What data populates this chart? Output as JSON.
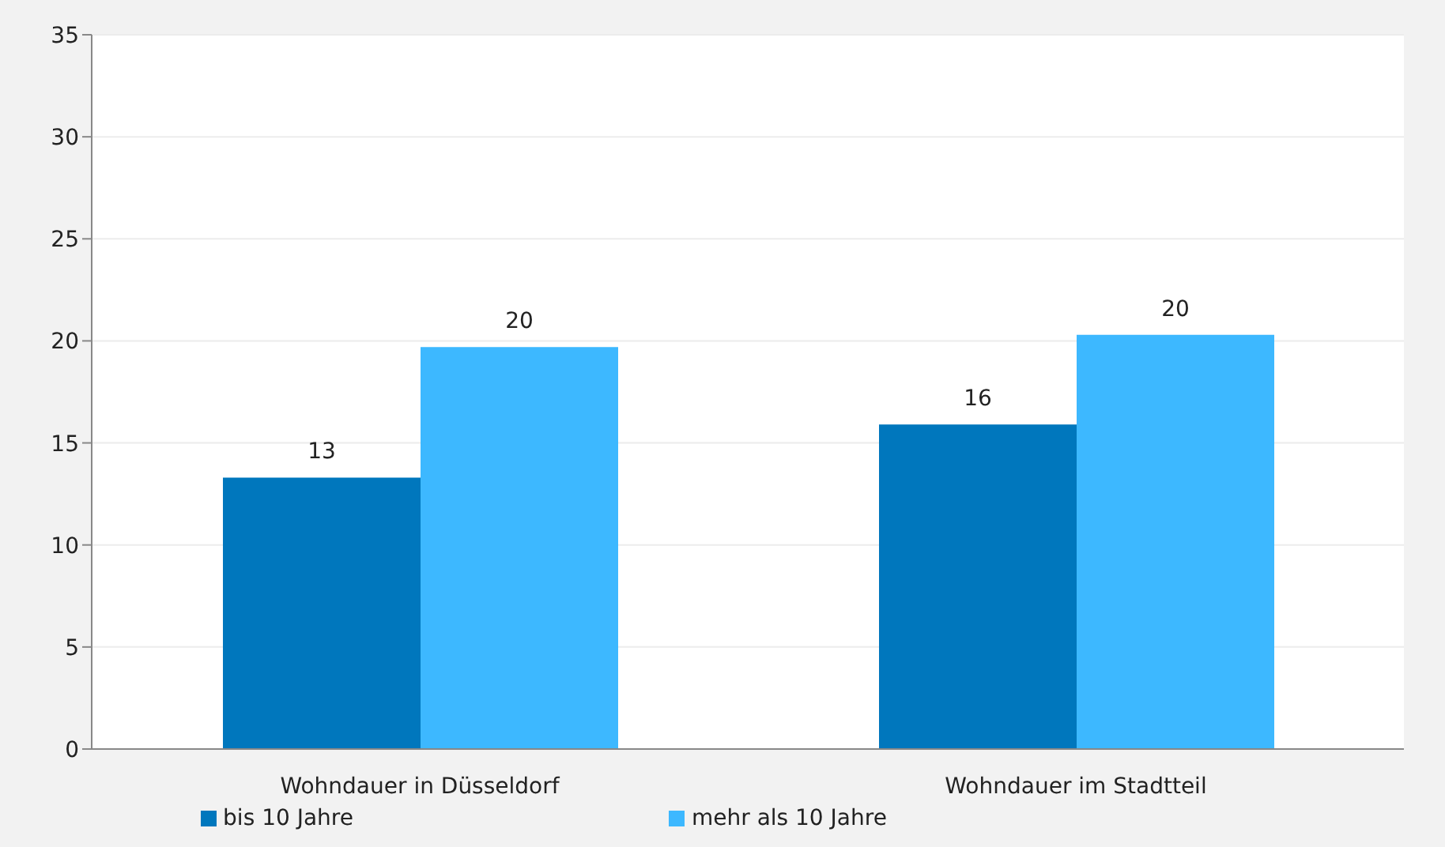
{
  "chart_data": {
    "type": "bar",
    "categories": [
      "Wohndauer in Düsseldorf",
      "Wohndauer im Stadtteil"
    ],
    "series": [
      {
        "name": "bis 10 Jahre",
        "color": "#0077bd",
        "values": [
          13.3,
          15.9
        ],
        "value_labels": [
          "13",
          "16"
        ]
      },
      {
        "name": "mehr als 10 Jahre",
        "color": "#3db8ff",
        "values": [
          19.7,
          20.3
        ],
        "value_labels": [
          "20",
          "20"
        ]
      }
    ],
    "ylim": [
      0,
      35
    ],
    "yticks": [
      0,
      5,
      10,
      15,
      20,
      25,
      30,
      35
    ],
    "grid": "y",
    "legend": "bottom"
  }
}
